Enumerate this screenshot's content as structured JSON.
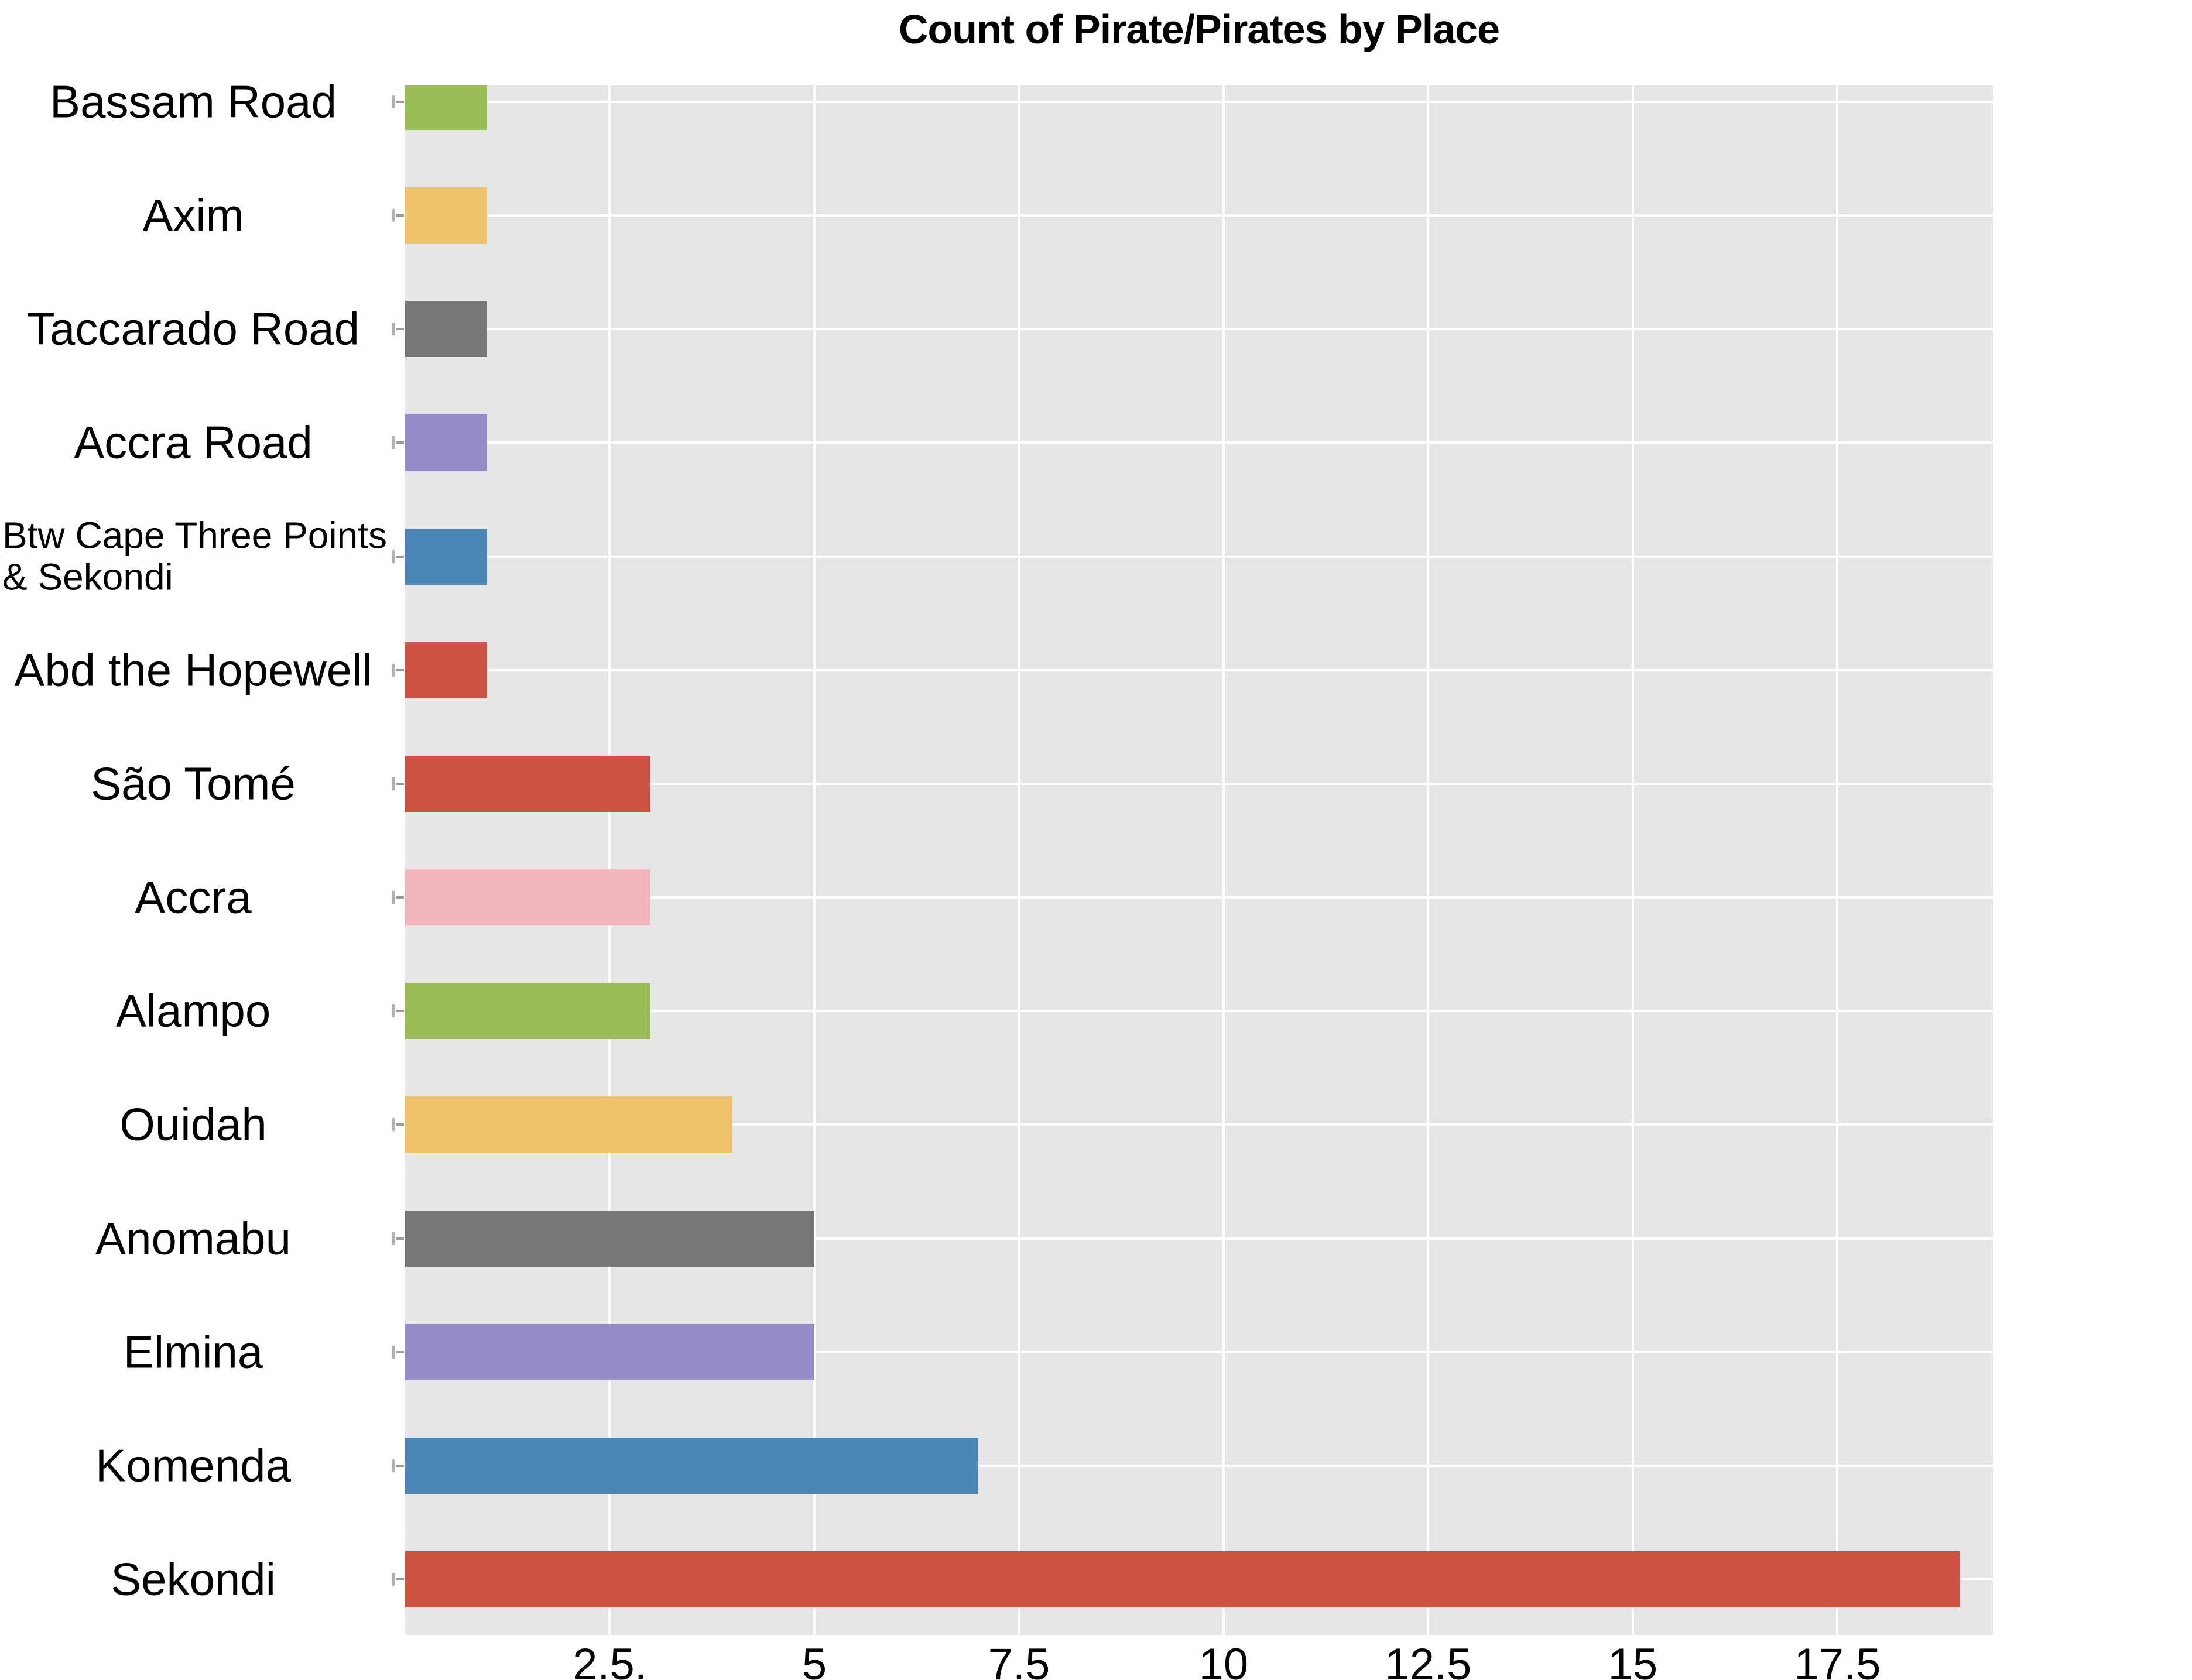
{
  "title": "Count of Pirate/Pirates by Place",
  "chart_data": {
    "type": "bar",
    "orientation": "horizontal",
    "title": "Count of Pirate/Pirates by Place",
    "xlabel": "",
    "ylabel": "",
    "categories": [
      "Bassam Road",
      "Axim",
      "Taccarado Road",
      "Accra Road",
      "Btw Cape Three Points & Sekondi",
      "Abd the Hopewell",
      "São Tomé",
      "Accra",
      "Alampo",
      "Ouidah",
      "Anomabu",
      "Elmina",
      "Komenda",
      "Sekondi"
    ],
    "values": [
      1,
      1,
      1,
      1,
      1,
      1,
      3,
      3,
      3,
      4,
      5,
      5,
      7,
      19
    ],
    "bar_colors": [
      "#9BBA58",
      "#F1C46C",
      "#777777",
      "#968CCB",
      "#4B86B7",
      "#CD5342",
      "#CD5342",
      "#F2B5BC",
      "#9BBA58",
      "#F1C46C",
      "#777777",
      "#968CCB",
      "#4B86B7",
      "#CD5342"
    ],
    "wrapped_label_index": 4,
    "wrapped_label_lines": [
      "Btw Cape Three Points",
      "& Sekondi"
    ],
    "xlim": [
      0,
      19.4
    ],
    "x_ticks": [
      2.5,
      5,
      7.5,
      10,
      12.5,
      15,
      17.5
    ],
    "x_tick_labels": [
      "2.5.",
      "5",
      "7.5",
      "10",
      "12.5",
      "15",
      "17.5"
    ],
    "grid": "on",
    "legend": "none",
    "colors": {
      "panel_background": "#E6E6E7",
      "gridline": "#FFFFFF",
      "tick_mark": "#9A9A9A",
      "text": "#000000",
      "page_background": "#FFFFFF"
    }
  }
}
